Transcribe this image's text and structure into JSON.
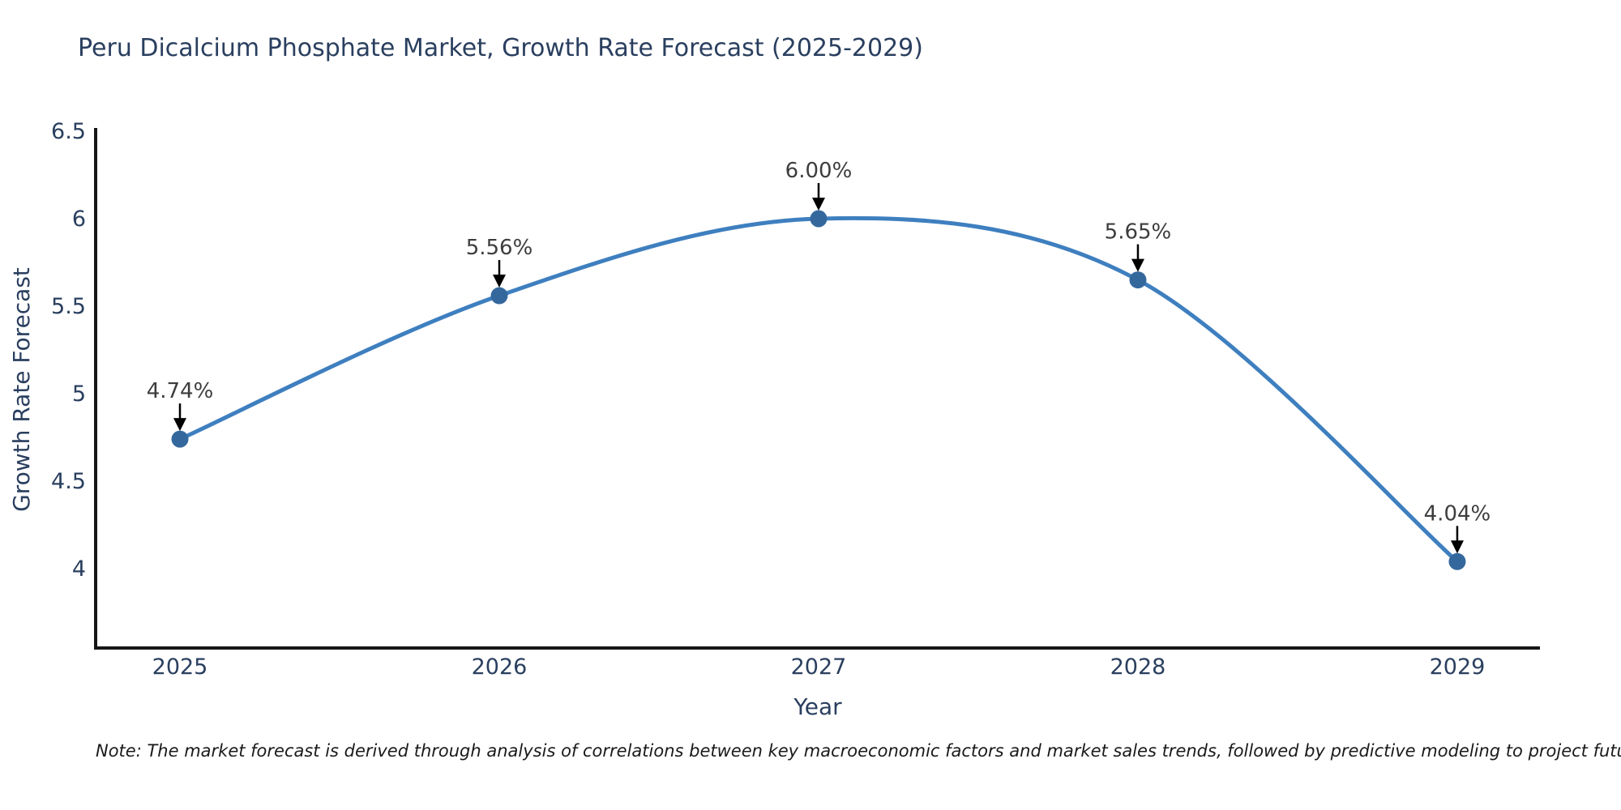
{
  "page": {
    "background_color": "#ffffff"
  },
  "chart_data": {
    "type": "line",
    "title": "Peru Dicalcium Phosphate Market, Growth Rate Forecast (2025-2029)",
    "x": [
      "2025",
      "2026",
      "2027",
      "2028",
      "2029"
    ],
    "y": [
      4.74,
      5.56,
      6.0,
      5.65,
      4.04
    ],
    "point_labels": [
      "4.74%",
      "5.56%",
      "6.00%",
      "5.65%",
      "4.04%"
    ],
    "xlabel": "Year",
    "ylabel": "Growth Rate Forecast",
    "ytick_labels": [
      "6.5",
      "6",
      "5.5",
      "5",
      "4.5",
      "4"
    ],
    "ytick_values": [
      6.5,
      6,
      5.5,
      5,
      4.5,
      4
    ],
    "ylim": [
      3.546,
      6.5
    ],
    "xlim": [
      2024.736,
      2029.259
    ],
    "grid": false,
    "legend_position": "none",
    "line_shape": "spline",
    "line_color": "#3e7fbf",
    "marker_color": "#34689d",
    "axis_color": "#161616",
    "label_color": "#2a3f5f",
    "annotation_text_color": "#3d3d3d",
    "annotation_arrow_color": "#000000",
    "note": "Note: The market forecast is derived through analysis of correlations between key macroeconomic factors and market sales trends, followed by predictive modeling to project future sales"
  }
}
